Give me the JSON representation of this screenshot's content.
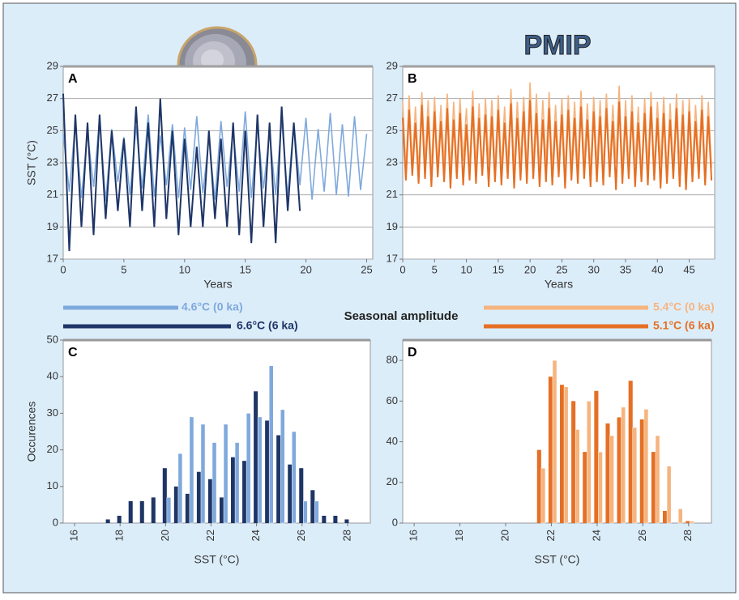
{
  "legend_title": "Seasonal amplitude",
  "logo": "PMIP",
  "chart_data": [
    {
      "type": "line",
      "label": "A",
      "xlabel": "Years",
      "ylabel": "SST (°C)",
      "xlim": [
        0,
        25.5
      ],
      "xticks": [
        0,
        5,
        10,
        15,
        20,
        25
      ],
      "ylim": [
        17,
        29
      ],
      "yticks": [
        17,
        19,
        21,
        23,
        25,
        27,
        29
      ],
      "grid": true,
      "x": [
        0,
        0.5,
        1,
        1.5,
        2,
        2.5,
        3,
        3.5,
        4,
        4.5,
        5,
        5.5,
        6,
        6.5,
        7,
        7.5,
        8,
        8.5,
        9,
        9.5,
        10,
        10.5,
        11,
        11.5,
        12,
        12.5,
        13,
        13.5,
        14,
        14.5,
        15,
        15.5,
        16,
        16.5,
        17,
        17.5,
        18,
        18.5,
        19,
        19.5,
        20,
        20.5,
        21,
        21.5,
        22,
        22.5,
        23,
        23.5,
        24,
        24.5,
        25
      ],
      "series": [
        {
          "name": "4.6°C (0 ka)",
          "color": "#7fa9dc",
          "values": [
            24.8,
            21.2,
            25.5,
            20.8,
            24.9,
            21.5,
            25.8,
            20.6,
            25.1,
            21.8,
            24.6,
            21,
            25.3,
            21.4,
            26,
            20.9,
            24.7,
            21.6,
            25.4,
            20.8,
            25.2,
            21.3,
            25.9,
            21.1,
            24.5,
            20.7,
            25.6,
            21.5,
            25,
            21.2,
            26.2,
            20.8,
            25.3,
            21.4,
            24.9,
            21,
            25.7,
            20.9,
            25.5,
            21.6,
            25.8,
            20.7,
            25.1,
            21.2,
            26.1,
            21,
            25.4,
            20.9,
            25.9,
            21.3,
            24.8
          ]
        },
        {
          "name": "6.6°C (6 ka)",
          "color": "#1e3566",
          "values": [
            27.3,
            17.5,
            26,
            19,
            25.5,
            18.5,
            26,
            19.5,
            25,
            20,
            24.5,
            19,
            26.5,
            20,
            25.5,
            19,
            27,
            19.5,
            25,
            18.5,
            24.5,
            19,
            24,
            19,
            25,
            19.5,
            24.5,
            19,
            25.5,
            18.5,
            25,
            18,
            26,
            19,
            25.5,
            18,
            26.5,
            20,
            25.5,
            20,
            null,
            null,
            null,
            null,
            null,
            null,
            null,
            null,
            null,
            null,
            null
          ]
        }
      ]
    },
    {
      "type": "line",
      "label": "B",
      "xlabel": "Years",
      "xlim": [
        0,
        49
      ],
      "xticks": [
        0,
        5,
        10,
        15,
        20,
        25,
        30,
        35,
        40,
        45
      ],
      "ylim": [
        17,
        29
      ],
      "yticks": [
        17,
        19,
        21,
        23,
        25,
        27,
        29
      ],
      "grid": true,
      "x": [
        0,
        0.5,
        1,
        1.5,
        2,
        2.5,
        3,
        3.5,
        4,
        4.5,
        5,
        5.5,
        6,
        6.5,
        7,
        7.5,
        8,
        8.5,
        9,
        9.5,
        10,
        10.5,
        11,
        11.5,
        12,
        12.5,
        13,
        13.5,
        14,
        14.5,
        15,
        15.5,
        16,
        16.5,
        17,
        17.5,
        18,
        18.5,
        19,
        19.5,
        20,
        20.5,
        21,
        21.5,
        22,
        22.5,
        23,
        23.5,
        24,
        24.5,
        25,
        25.5,
        26,
        26.5,
        27,
        27.5,
        28,
        28.5,
        29,
        29.5,
        30,
        30.5,
        31,
        31.5,
        32,
        32.5,
        33,
        33.5,
        34,
        34.5,
        35,
        35.5,
        36,
        36.5,
        37,
        37.5,
        38,
        38.5,
        39,
        39.5,
        40,
        40.5,
        41,
        41.5,
        42,
        42.5,
        43,
        43.5,
        44,
        44.5,
        45,
        45.5,
        46,
        46.5,
        47,
        47.5,
        48,
        48.5
      ],
      "series": [
        {
          "name": "5.4°C (0 ka)",
          "color": "#f6b47e",
          "values": [
            26.8,
            22.6,
            27.2,
            22.8,
            26.5,
            22.4,
            27.4,
            23,
            26.9,
            22.5,
            27.1,
            22.7,
            26.6,
            22.9,
            27.3,
            22.4,
            26.8,
            22.6,
            27,
            23.1,
            26.4,
            22.5,
            27.5,
            22.8,
            26.7,
            22.3,
            27,
            22.9,
            26.9,
            22.6,
            27.2,
            22.4,
            26.5,
            22.8,
            27.6,
            22.5,
            26.8,
            23,
            27.1,
            22.6,
            28,
            22.7,
            27.3,
            22.4,
            26.9,
            22.9,
            27.4,
            22.5,
            26.6,
            22.8,
            27,
            22.3,
            27.2,
            22.7,
            26.8,
            22.6,
            27.5,
            22.9,
            26.7,
            22.4,
            27.1,
            22.8,
            26.9,
            22.5,
            27.3,
            22.7,
            26.6,
            23,
            27.8,
            22.4,
            26.9,
            22.6,
            27.2,
            22.8,
            26.5,
            22.3,
            27,
            22.7,
            27.4,
            22.5,
            26.8,
            22.9,
            27.1,
            22.4,
            26.7,
            22.6,
            27.3,
            22.8,
            26.9,
            22.3,
            27,
            22.6,
            26.6,
            22.9,
            27.2,
            22.5,
            26.8,
            22.7
          ]
        },
        {
          "name": "5.1°C (6 ka)",
          "color": "#e56f24",
          "values": [
            25.8,
            21.9,
            26.3,
            22.2,
            25.5,
            21.7,
            26.6,
            22,
            25.9,
            21.5,
            26.2,
            22.1,
            25.6,
            21.8,
            26.4,
            21.4,
            25.7,
            22,
            26.1,
            21.6,
            25.4,
            21.9,
            26.5,
            21.7,
            25.8,
            22.2,
            26,
            21.5,
            25.9,
            21.8,
            26.3,
            21.6,
            25.5,
            22,
            26.7,
            21.4,
            25.8,
            21.9,
            26.2,
            21.7,
            26.9,
            22,
            26.1,
            21.5,
            25.7,
            21.8,
            26.4,
            21.6,
            25.6,
            22.1,
            26,
            21.4,
            26.3,
            21.9,
            25.8,
            21.7,
            26.5,
            22,
            25.7,
            21.5,
            26.2,
            21.8,
            25.9,
            21.6,
            26.4,
            22.1,
            25.6,
            21.3,
            26.8,
            21.7,
            25.9,
            22,
            26.2,
            21.5,
            25.5,
            21.8,
            26.1,
            21.6,
            26.5,
            21.9,
            25.8,
            21.4,
            26.1,
            21.7,
            25.7,
            22,
            26.4,
            21.5,
            26,
            21.3,
            26.2,
            21.8,
            25.6,
            22,
            26.3,
            21.6,
            25.9,
            21.9
          ]
        }
      ]
    },
    {
      "type": "bar",
      "label": "C",
      "xlabel": "SST (°C)",
      "ylabel": "Occurences",
      "xlim": [
        15.5,
        29
      ],
      "xticks": [
        16,
        18,
        20,
        22,
        24,
        26,
        28
      ],
      "ylim": [
        0,
        50
      ],
      "yticks": [
        0,
        10,
        20,
        30,
        40,
        50
      ],
      "grid": false,
      "x": [
        17.5,
        18,
        18.5,
        19,
        19.5,
        20,
        20.5,
        21,
        21.5,
        22,
        22.5,
        23,
        23.5,
        24,
        24.5,
        25,
        25.5,
        26,
        26.5,
        27,
        27.5,
        28
      ],
      "series": [
        {
          "name": "6 ka",
          "color": "#1e3566",
          "values": [
            1,
            2,
            6,
            6,
            7,
            15,
            10,
            8,
            14,
            12,
            7,
            18,
            17,
            36,
            28,
            24,
            16,
            15,
            9,
            2,
            2,
            1
          ]
        },
        {
          "name": "0 ka",
          "color": "#7fa9dc",
          "values": [
            0,
            0,
            0,
            0,
            0,
            7,
            19,
            29,
            27,
            22,
            27,
            22,
            30,
            29,
            43,
            31,
            25,
            6,
            6,
            0,
            0,
            0
          ]
        }
      ]
    },
    {
      "type": "bar",
      "label": "D",
      "xlabel": "SST (°C)",
      "xlim": [
        15.5,
        29
      ],
      "xticks": [
        16,
        18,
        20,
        22,
        24,
        26,
        28
      ],
      "ylim": [
        0,
        90
      ],
      "yticks": [
        0,
        20,
        40,
        60,
        80
      ],
      "grid": false,
      "x": [
        21.5,
        22,
        22.5,
        23,
        23.5,
        24,
        24.5,
        25,
        25.5,
        26,
        26.5,
        27,
        27.5,
        28
      ],
      "series": [
        {
          "name": "6 ka",
          "color": "#e56f24",
          "values": [
            36,
            72,
            68,
            60,
            35,
            65,
            49,
            52,
            70,
            51,
            35,
            6,
            0,
            1
          ]
        },
        {
          "name": "0 ka",
          "color": "#f6b47e",
          "values": [
            27,
            80,
            67,
            46,
            60,
            35,
            43,
            57,
            47,
            56,
            43,
            28,
            7,
            1
          ]
        }
      ]
    }
  ]
}
